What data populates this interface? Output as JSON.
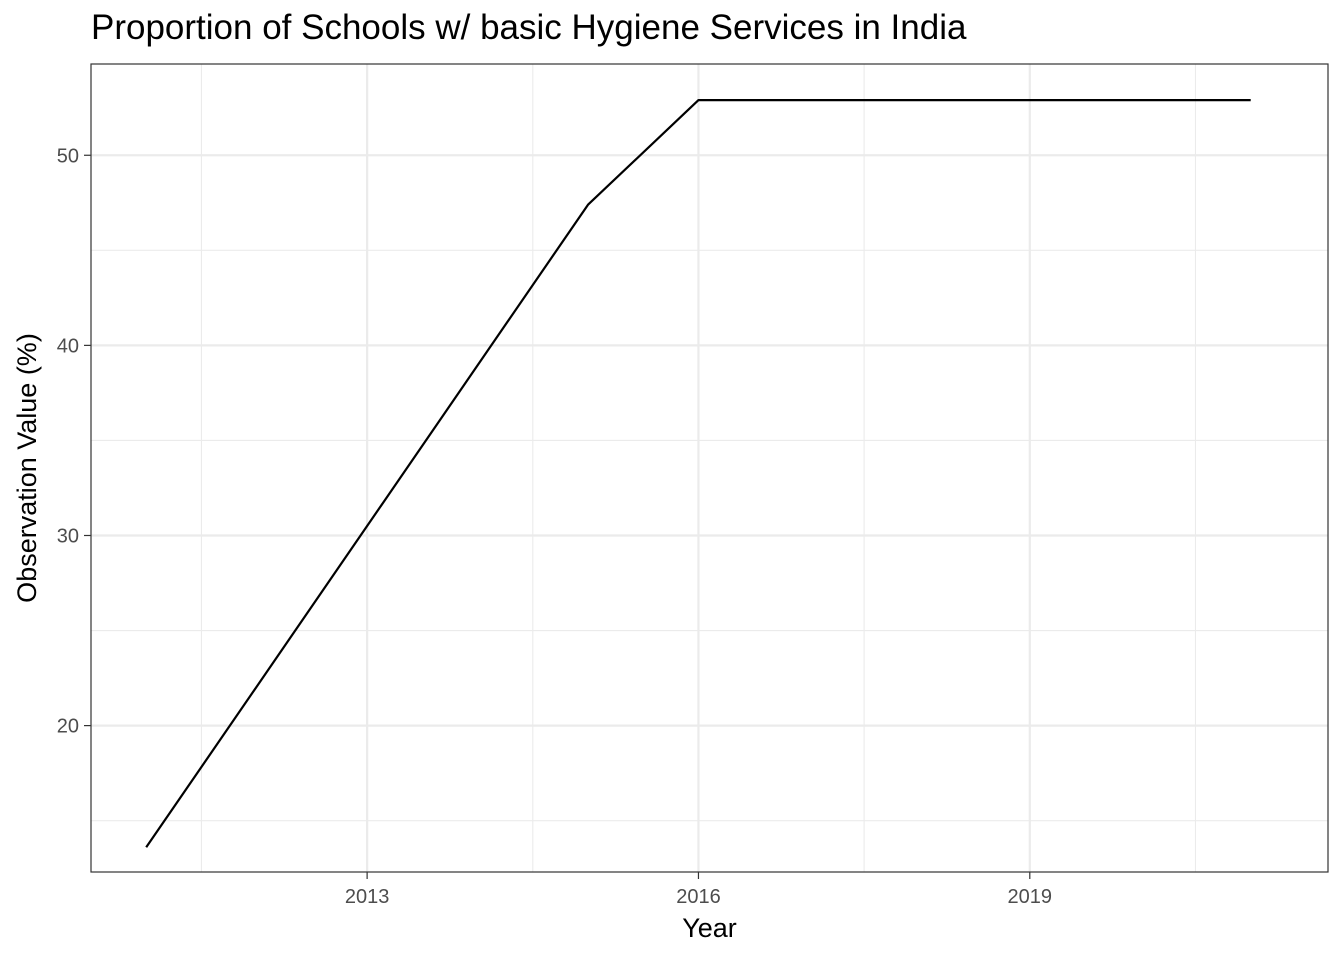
{
  "chart_data": {
    "type": "line",
    "title": "Proportion of Schools w/ basic Hygiene Services in India",
    "xlabel": "Year",
    "ylabel": "Observation Value (%)",
    "x_ticks": [
      2013,
      2016,
      2019
    ],
    "y_ticks": [
      20,
      30,
      40,
      50
    ],
    "xlim": [
      2010.5,
      2021.7
    ],
    "ylim": [
      12.3,
      54.8
    ],
    "grid": true,
    "legend": "none",
    "series": [
      {
        "x": [
          2011,
          2015,
          2016,
          2017,
          2018,
          2019,
          2020,
          2021
        ],
        "values": [
          13.6,
          47.4,
          52.9,
          52.9,
          52.9,
          52.9,
          52.9,
          52.9
        ]
      }
    ],
    "colors": {
      "line": "#000000",
      "grid": "#ebebeb",
      "panel_border": "#333333",
      "tick_text": "#4d4d4d"
    }
  }
}
